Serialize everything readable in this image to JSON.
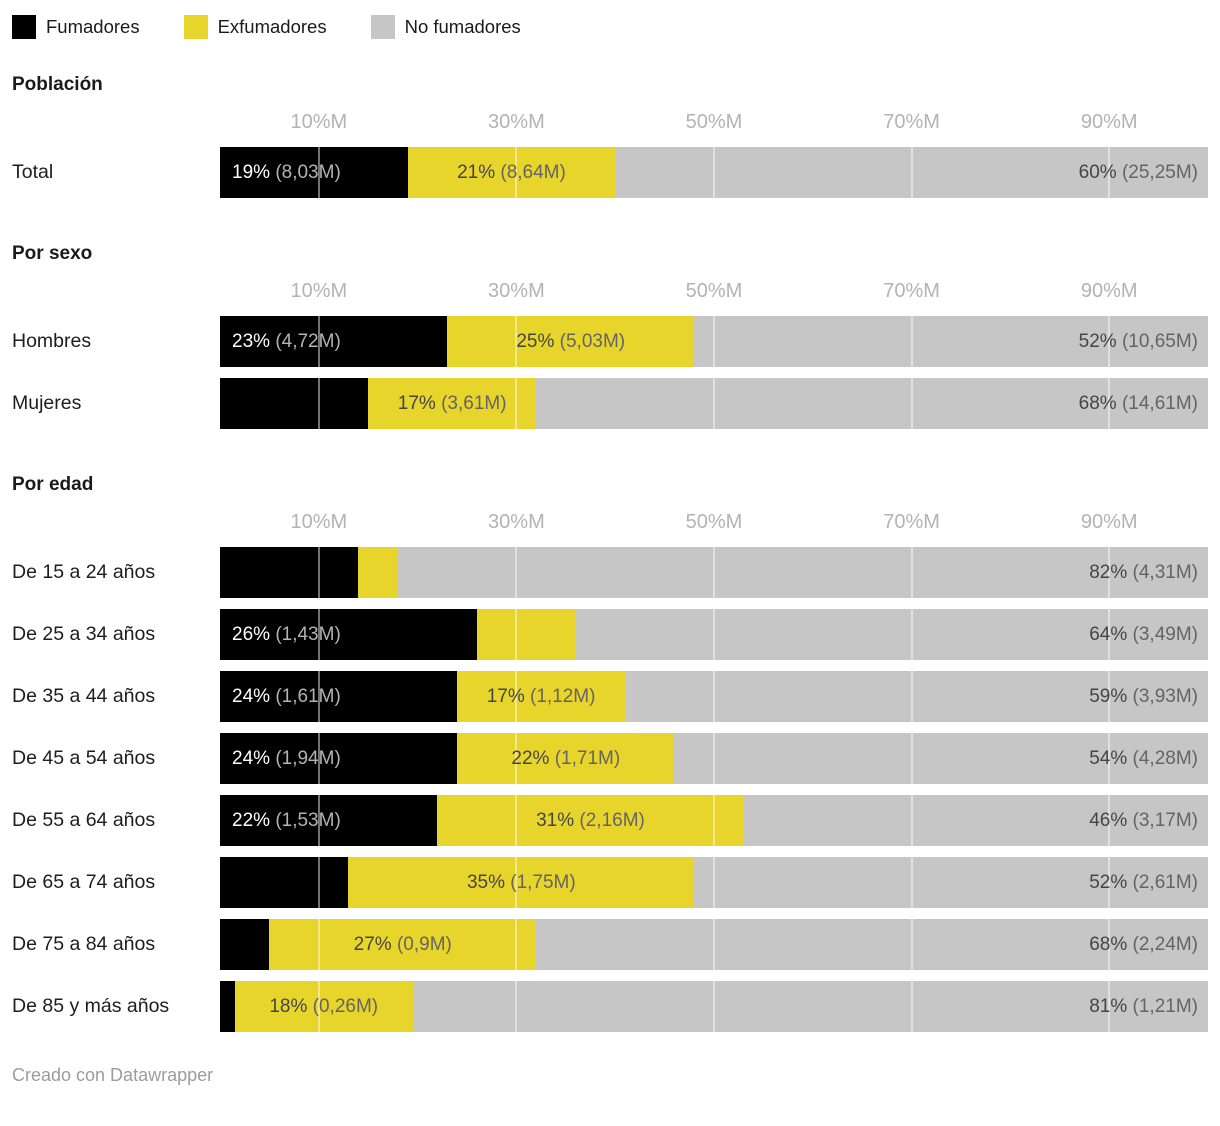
{
  "legend": {
    "items": [
      {
        "id": "fumadores",
        "label": "Fumadores",
        "color": "#000000"
      },
      {
        "id": "exfumadores",
        "label": "Exfumadores",
        "color": "#e8d52b"
      },
      {
        "id": "no_fumadores",
        "label": "No fumadores",
        "color": "#c6c6c6"
      }
    ]
  },
  "colors": {
    "fumadores": "#000000",
    "exfumadores": "#e8d52b",
    "no_fumadores": "#c6c6c6",
    "pct_on_dark": "#ffffff",
    "paren_on_dark": "#b3b3b3",
    "pct_on_light": "#454545",
    "paren_on_light": "#646464",
    "tick": "#b3b3b3",
    "section_title": "#1a1a1a",
    "row_label": "#1d1d1d",
    "legend_text": "#1a1a1a",
    "credit": "#9c9c9c",
    "gridline": "rgba(255,255,255,0.45)"
  },
  "chart_data": {
    "type": "bar",
    "orientation": "horizontal",
    "stacked": true,
    "series_names": [
      "Fumadores",
      "Exfumadores",
      "No fumadores"
    ],
    "x_axis": {
      "tick_labels": [
        "10%M",
        "30%M",
        "50%M",
        "70%M",
        "90%M"
      ],
      "tick_positions": [
        10,
        30,
        50,
        70,
        90
      ],
      "range": [
        0,
        100
      ]
    },
    "sections": [
      {
        "title": "Población",
        "rows": [
          {
            "category": "Total",
            "values_pct": [
              19,
              21,
              60
            ],
            "values_millions": [
              8.03,
              8.64,
              25.25
            ],
            "segment_labels": [
              "19% (8,03M)",
              "21% (8,64M)",
              "60% (25,25M)"
            ]
          }
        ]
      },
      {
        "title": "Por sexo",
        "rows": [
          {
            "category": "Hombres",
            "values_pct": [
              23,
              25,
              52
            ],
            "values_millions": [
              4.72,
              5.03,
              10.65
            ],
            "segment_labels": [
              "23% (4,72M)",
              "25% (5,03M)",
              "52% (10,65M)"
            ]
          },
          {
            "category": "Mujeres",
            "values_pct": [
              15,
              17,
              68
            ],
            "values_millions": [
              null,
              3.61,
              14.61
            ],
            "segment_labels": [
              "",
              "17% (3,61M)",
              "68% (14,61M)"
            ]
          }
        ]
      },
      {
        "title": "Por edad",
        "rows": [
          {
            "category": "De 15 a 24 años",
            "values_pct": [
              14,
              4,
              82
            ],
            "values_millions": [
              null,
              null,
              4.31
            ],
            "segment_labels": [
              "",
              "",
              "82% (4,31M)"
            ]
          },
          {
            "category": "De 25 a 34 años",
            "values_pct": [
              26,
              10,
              64
            ],
            "values_millions": [
              1.43,
              null,
              3.49
            ],
            "segment_labels": [
              "26% (1,43M)",
              "",
              "64% (3,49M)"
            ]
          },
          {
            "category": "De 35 a 44 años",
            "values_pct": [
              24,
              17,
              59
            ],
            "values_millions": [
              1.61,
              1.12,
              3.93
            ],
            "segment_labels": [
              "24% (1,61M)",
              "17% (1,12M)",
              "59% (3,93M)"
            ]
          },
          {
            "category": "De 45 a 54 años",
            "values_pct": [
              24,
              22,
              54
            ],
            "values_millions": [
              1.94,
              1.71,
              4.28
            ],
            "segment_labels": [
              "24% (1,94M)",
              "22% (1,71M)",
              "54% (4,28M)"
            ]
          },
          {
            "category": "De 55 a 64 años",
            "values_pct": [
              22,
              31,
              46
            ],
            "values_millions": [
              1.53,
              2.16,
              3.17
            ],
            "segment_labels": [
              "22% (1,53M)",
              "31% (2,16M)",
              "46% (3,17M)"
            ]
          },
          {
            "category": "De 65 a 74 años",
            "values_pct": [
              13,
              35,
              52
            ],
            "values_millions": [
              null,
              1.75,
              2.61
            ],
            "segment_labels": [
              "",
              "35% (1,75M)",
              "52% (2,61M)"
            ]
          },
          {
            "category": "De 75 a 84 años",
            "values_pct": [
              5,
              27,
              68
            ],
            "values_millions": [
              null,
              0.9,
              2.24
            ],
            "segment_labels": [
              "",
              "27% (0,9M)",
              "68% (2,24M)"
            ]
          },
          {
            "category": "De 85 y más años",
            "values_pct": [
              1.5,
              18,
              81
            ],
            "values_millions": [
              null,
              0.26,
              1.21
            ],
            "segment_labels": [
              "",
              "18% (0,26M)",
              "81% (1,21M)"
            ]
          }
        ]
      }
    ]
  },
  "footer": {
    "credit": "Creado con Datawrapper"
  }
}
